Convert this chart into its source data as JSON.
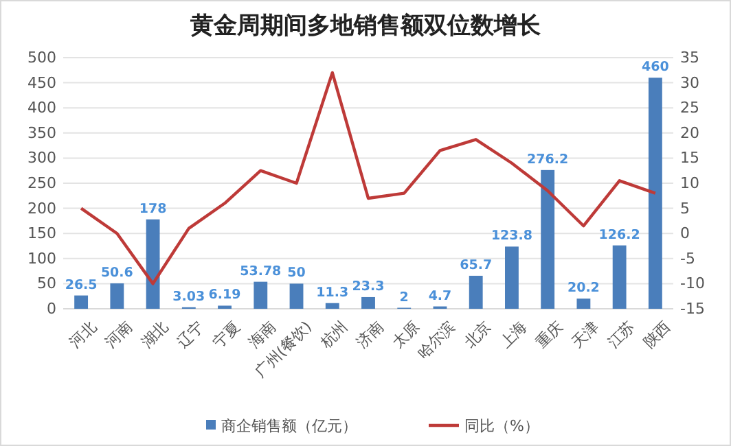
{
  "chart_data": {
    "type": "bar",
    "title": "黄金周期间多地销售额双位数增长",
    "categories": [
      "河北",
      "河南",
      "湖北",
      "辽宁",
      "宁夏",
      "海南",
      "广州(餐饮)",
      "杭州",
      "济南",
      "太原",
      "哈尔滨",
      "北京",
      "上海",
      "重庆",
      "天津",
      "江苏",
      "陕西"
    ],
    "series": [
      {
        "name": "商企销售额（亿元）",
        "color": "#4a7ebb",
        "values": [
          26.5,
          50.6,
          178,
          3.03,
          6.19,
          53.78,
          50,
          11.3,
          23.3,
          2,
          4.7,
          65.7,
          123.8,
          276.2,
          20.2,
          126.2,
          460
        ],
        "data_labels": true
      },
      {
        "name": "同比（%）",
        "type": "line",
        "axis": "y2",
        "color": "#be3a38",
        "values": [
          5,
          0,
          -10,
          1,
          6,
          12.5,
          10,
          32,
          7,
          8,
          16.5,
          18.7,
          14,
          8.5,
          1.5,
          10.5,
          8
        ]
      }
    ],
    "ylim": [
      0,
      500
    ],
    "yticks": [
      0,
      50,
      100,
      150,
      200,
      250,
      300,
      350,
      400,
      450,
      500
    ],
    "y2lim": [
      -15,
      35
    ],
    "y2ticks": [
      -15,
      -10,
      -5,
      0,
      5,
      10,
      15,
      20,
      25,
      30,
      35
    ],
    "grid": "y",
    "legend": "bottom",
    "marker": "none",
    "line_style": "solid"
  }
}
